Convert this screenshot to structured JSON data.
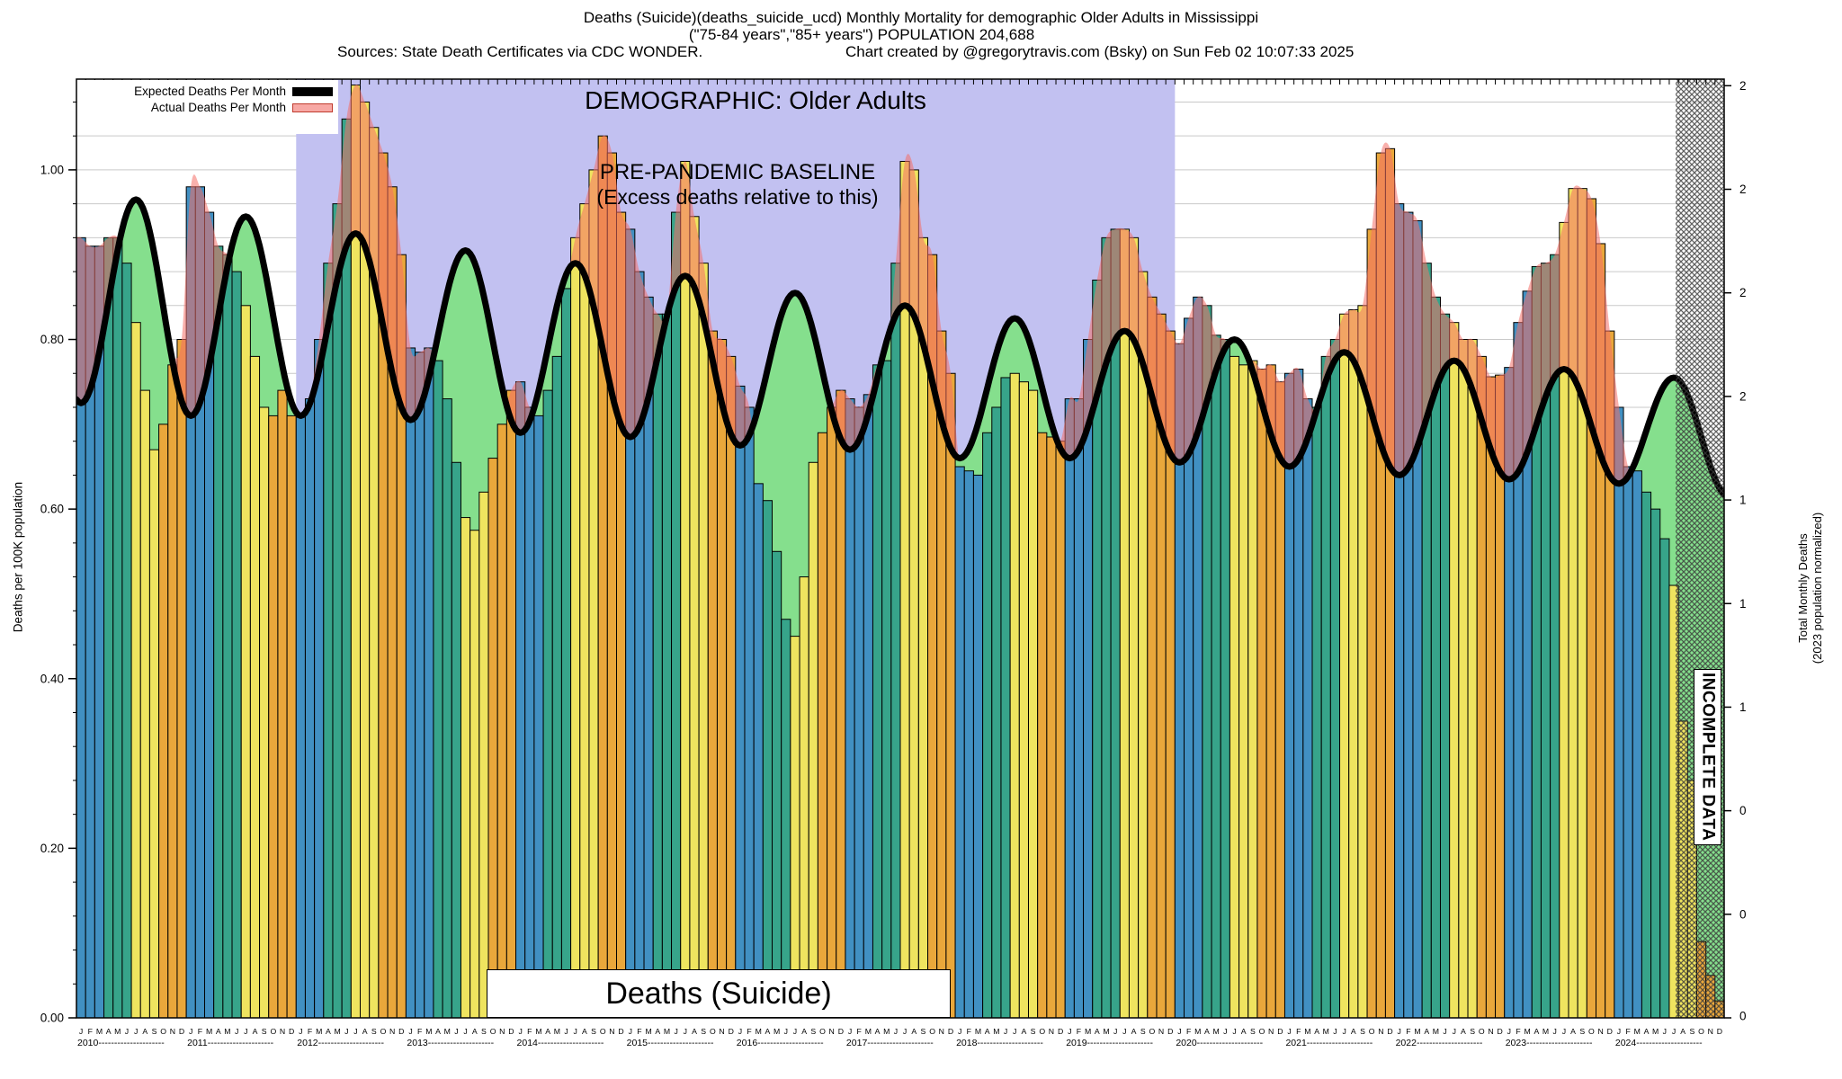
{
  "title": {
    "line1": "Deaths (Suicide)(deaths_suicide_ucd) Monthly Mortality for demographic Older Adults in Mississippi",
    "line2": "(\"75-84 years\",\"85+ years\") POPULATION 204,688",
    "sources": "Sources: State Death Certificates via CDC WONDER.",
    "credit": "Chart created by @gregorytravis.com (Bsky) on Sun Feb 02 10:07:33 2025"
  },
  "legend": {
    "expected_label": "Expected Deaths Per Month",
    "actual_label": "Actual Deaths Per Month"
  },
  "overlays": {
    "demographic": "DEMOGRAPHIC: Older Adults",
    "baseline_line1": "PRE-PANDEMIC BASELINE",
    "baseline_line2": "(Excess deaths relative to this)",
    "incomplete": "INCOMPLETE DATA",
    "bottom_label": "Deaths (Suicide)"
  },
  "axes": {
    "left_title": "Deaths per 100K population",
    "right_title_line1": "Total Monthly Deaths",
    "right_title_line2": "(2023 population normalized)",
    "left_tick_labels": [
      "0.00",
      "0.20",
      "0.40",
      "0.60",
      "0.80",
      "1.00"
    ],
    "left_tick_values": [
      0.0,
      0.2,
      0.4,
      0.6,
      0.8,
      1.0
    ],
    "right_tick_labels": [
      "0",
      "0",
      "0",
      "1",
      "1",
      "1",
      "2",
      "2",
      "2",
      "2"
    ],
    "right_tick_step_rate": 0.122137,
    "month_letters": "JFMAMJJASOND",
    "years": [
      2010,
      2011,
      2012,
      2013,
      2014,
      2015,
      2016,
      2017,
      2018,
      2019,
      2020,
      2021,
      2022,
      2023,
      2024
    ]
  },
  "colors": {
    "winter_bar": "#4190c2",
    "spring_bar": "#37a48a",
    "summer_bar": "#efe45f",
    "fall_bar": "#e9a73b",
    "expected_line": "#000000",
    "expected_area_green": "#85df8d",
    "actual_overlay_pink": "rgba(244,111,104,0.55)",
    "legend_actual_swatch": "#f7a8a4",
    "legend_actual_border": "#c03b2e",
    "baseline_band_lavender": "#c2c1f1",
    "gridline": "#c9c9c9",
    "hatch": "#3a3a3a"
  },
  "chart_data": {
    "type": "bar",
    "description": "Monthly suicide deaths per 100K population, Older Adults (75-84, 85+), Mississippi, Jan 2010 - Dec 2024. Bars = actual deaths per month (colored by season, tinted salmon where above expected); thick black line = expected deaths per month; green = area under expected curve; salmon = excess above expected; lavender band = pre-pandemic baseline period Jan 2012 - Jan 2020; crosshatch from Aug 2024 = incomplete data.",
    "ylim": [
      0,
      1.107
    ],
    "x_start": "2010-01",
    "x_end": "2024-12",
    "categories_note": "12 monthly values per year, Jan..Dec",
    "actual_monthly": [
      {
        "year": 2010,
        "values": [
          0.92,
          0.91,
          0.91,
          0.92,
          0.92,
          0.89,
          0.82,
          0.74,
          0.67,
          0.7,
          0.77,
          0.8
        ]
      },
      {
        "year": 2011,
        "values": [
          0.98,
          0.98,
          0.95,
          0.91,
          0.9,
          0.88,
          0.84,
          0.78,
          0.72,
          0.71,
          0.74,
          0.71
        ]
      },
      {
        "year": 2012,
        "values": [
          0.71,
          0.73,
          0.8,
          0.89,
          0.96,
          1.06,
          1.1,
          1.08,
          1.05,
          1.02,
          0.98,
          0.9
        ]
      },
      {
        "year": 2013,
        "values": [
          0.79,
          0.785,
          0.79,
          0.775,
          0.73,
          0.655,
          0.59,
          0.575,
          0.62,
          0.66,
          0.7,
          0.74
        ]
      },
      {
        "year": 2014,
        "values": [
          0.75,
          0.72,
          0.71,
          0.74,
          0.78,
          0.86,
          0.92,
          0.96,
          1.0,
          1.04,
          1.02,
          0.95
        ]
      },
      {
        "year": 2015,
        "values": [
          0.93,
          0.88,
          0.85,
          0.83,
          0.83,
          0.95,
          1.01,
          0.945,
          0.89,
          0.81,
          0.8,
          0.78
        ]
      },
      {
        "year": 2016,
        "values": [
          0.745,
          0.72,
          0.63,
          0.61,
          0.55,
          0.47,
          0.45,
          0.52,
          0.655,
          0.69,
          0.72,
          0.74
        ]
      },
      {
        "year": 2017,
        "values": [
          0.73,
          0.72,
          0.735,
          0.77,
          0.775,
          0.89,
          1.01,
          1.0,
          0.92,
          0.9,
          0.81,
          0.76
        ]
      },
      {
        "year": 2018,
        "values": [
          0.65,
          0.645,
          0.64,
          0.69,
          0.72,
          0.755,
          0.76,
          0.75,
          0.74,
          0.69,
          0.685,
          0.68
        ]
      },
      {
        "year": 2019,
        "values": [
          0.73,
          0.73,
          0.8,
          0.87,
          0.92,
          0.93,
          0.93,
          0.92,
          0.88,
          0.85,
          0.83,
          0.81
        ]
      },
      {
        "year": 2020,
        "values": [
          0.795,
          0.825,
          0.85,
          0.84,
          0.805,
          0.8,
          0.78,
          0.77,
          0.775,
          0.765,
          0.77,
          0.75
        ]
      },
      {
        "year": 2021,
        "values": [
          0.76,
          0.765,
          0.73,
          0.72,
          0.78,
          0.8,
          0.83,
          0.835,
          0.84,
          0.93,
          1.02,
          1.025
        ]
      },
      {
        "year": 2022,
        "values": [
          0.96,
          0.95,
          0.94,
          0.89,
          0.85,
          0.83,
          0.82,
          0.8,
          0.8,
          0.78,
          0.756,
          0.758
        ]
      },
      {
        "year": 2023,
        "values": [
          0.767,
          0.82,
          0.857,
          0.886,
          0.89,
          0.9,
          0.938,
          0.978,
          0.978,
          0.966,
          0.913,
          0.81
        ]
      },
      {
        "year": 2024,
        "values": [
          0.72,
          0.65,
          0.645,
          0.62,
          0.6,
          0.565,
          0.51,
          0.35,
          0.28,
          0.09,
          0.05,
          0.02
        ]
      }
    ],
    "expected_seasonal": {
      "note": "Smooth seasonal curve: winter trough (Jan) to summer peak (Jul), cosine-interpolated",
      "lead_in_peak_jul_2009": 0.98,
      "years": [
        {
          "year": 2010,
          "jan_trough": 0.725,
          "jul_peak": 0.965
        },
        {
          "year": 2011,
          "jan_trough": 0.71,
          "jul_peak": 0.945
        },
        {
          "year": 2012,
          "jan_trough": 0.71,
          "jul_peak": 0.925
        },
        {
          "year": 2013,
          "jan_trough": 0.705,
          "jul_peak": 0.905
        },
        {
          "year": 2014,
          "jan_trough": 0.69,
          "jul_peak": 0.89
        },
        {
          "year": 2015,
          "jan_trough": 0.685,
          "jul_peak": 0.875
        },
        {
          "year": 2016,
          "jan_trough": 0.675,
          "jul_peak": 0.855
        },
        {
          "year": 2017,
          "jan_trough": 0.67,
          "jul_peak": 0.84
        },
        {
          "year": 2018,
          "jan_trough": 0.66,
          "jul_peak": 0.825
        },
        {
          "year": 2019,
          "jan_trough": 0.66,
          "jul_peak": 0.81
        },
        {
          "year": 2020,
          "jan_trough": 0.655,
          "jul_peak": 0.8
        },
        {
          "year": 2021,
          "jan_trough": 0.65,
          "jul_peak": 0.785
        },
        {
          "year": 2022,
          "jan_trough": 0.64,
          "jul_peak": 0.775
        },
        {
          "year": 2023,
          "jan_trough": 0.635,
          "jul_peak": 0.765
        },
        {
          "year": 2024,
          "jan_trough": 0.63,
          "jul_peak": 0.755
        }
      ],
      "tail_trough_jan_2025": 0.615
    },
    "baseline_band_month_range": [
      24,
      120
    ],
    "incomplete_from_month_index": 174.7,
    "legend_position": "top-left",
    "grid": "light horizontal lines every 0.04"
  }
}
